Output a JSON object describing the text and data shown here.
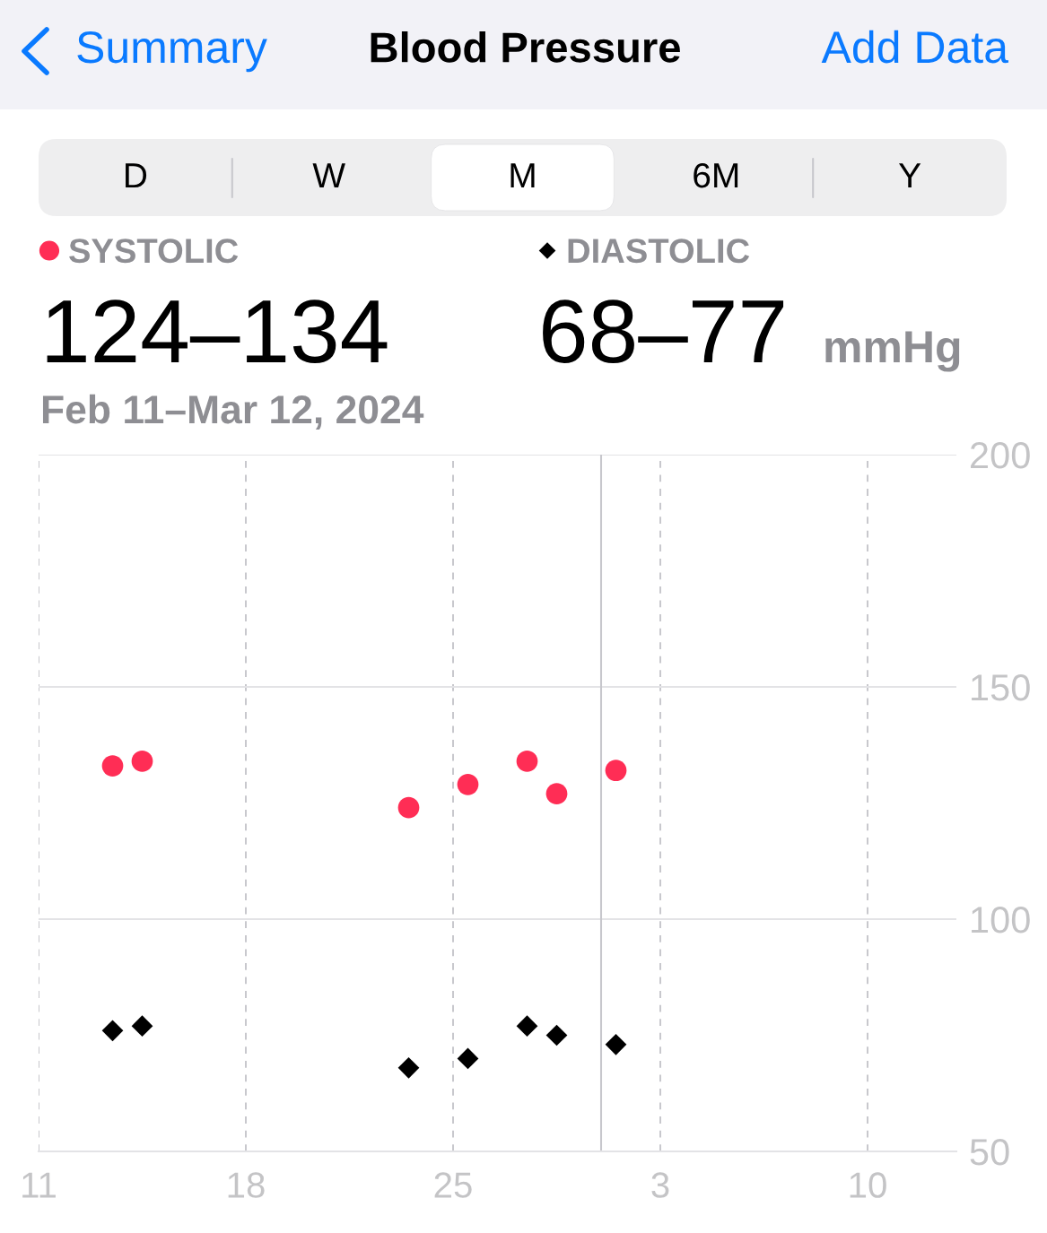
{
  "chart_data": {
    "type": "scatter",
    "title": "Blood Pressure",
    "subtitle": "Feb 11–Mar 12, 2024",
    "annotations": [
      "Summary",
      "Add Data",
      "D",
      "W",
      "M",
      "6M",
      "Y",
      "124–134",
      "68–77",
      "mmHg"
    ],
    "x": [
      "2024-02-13T12:00",
      "2024-02-14T12:00",
      "2024-02-23T12:00",
      "2024-02-25T12:00",
      "2024-02-27T12:00",
      "2024-02-28T12:00",
      "2024-03-01T12:00"
    ],
    "series": [
      {
        "name": "SYSTOLIC",
        "color": "#ff2d55",
        "marker": "circle",
        "values": [
          133,
          134,
          124,
          129,
          134,
          127,
          132
        ]
      },
      {
        "name": "DIASTOLIC",
        "color": "#000000",
        "marker": "diamond",
        "values": [
          76,
          77,
          68,
          70,
          77,
          75,
          73
        ]
      }
    ],
    "xlim": [
      "2024-02-11",
      "2024-03-13"
    ],
    "xticks": [
      {
        "value": "2024-02-11",
        "label": "11"
      },
      {
        "value": "2024-02-18",
        "label": "18"
      },
      {
        "value": "2024-02-25",
        "label": "25"
      },
      {
        "value": "2024-03-03",
        "label": "3"
      },
      {
        "value": "2024-03-10",
        "label": "10"
      }
    ],
    "ylim": [
      50,
      200
    ],
    "yticks": [
      50,
      100,
      150,
      200
    ],
    "ref_lines": [
      {
        "axis": "x",
        "value": "2024-03-01",
        "color": "#c7c7cc"
      }
    ],
    "grid": true,
    "legend": "top left"
  }
}
